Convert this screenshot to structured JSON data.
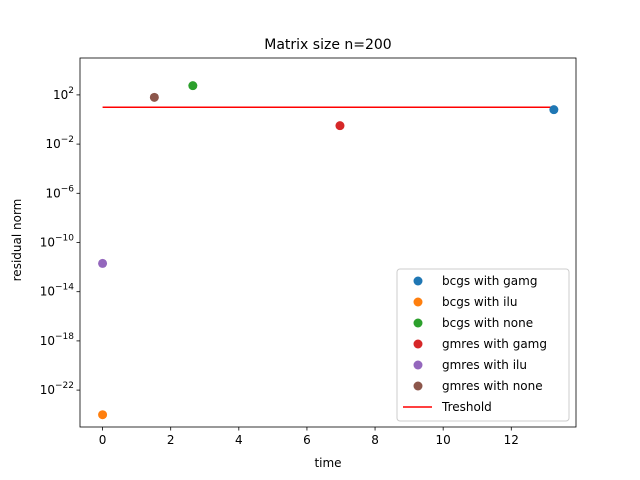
{
  "chart_data": {
    "type": "scatter",
    "title": "Matrix size n=200",
    "xlabel": "time",
    "ylabel": "residual norm",
    "xlim": [
      -0.663,
      13.9
    ],
    "ylim_log10": [
      -25.0,
      5.0
    ],
    "yscale": "log",
    "grid": false,
    "legend_position": "bottom-right",
    "x_ticks": [
      0,
      2,
      4,
      6,
      8,
      10,
      12
    ],
    "y_ticks_exponent": [
      2,
      -2,
      -6,
      -10,
      -14,
      -18,
      -22
    ],
    "series": [
      {
        "name": "bcgs with gamg",
        "color": "#1f77b4",
        "x": [
          13.25
        ],
        "y_log10": [
          0.8
        ]
      },
      {
        "name": "bcgs with ilu",
        "color": "#ff7f0e",
        "x": [
          0.0
        ],
        "y_log10": [
          -24.0
        ]
      },
      {
        "name": "bcgs with none",
        "color": "#2ca02c",
        "x": [
          2.65
        ],
        "y_log10": [
          2.75
        ]
      },
      {
        "name": "gmres with gamg",
        "color": "#d62728",
        "x": [
          6.97
        ],
        "y_log10": [
          -0.5
        ]
      },
      {
        "name": "gmres with ilu",
        "color": "#9467bd",
        "x": [
          0.0
        ],
        "y_log10": [
          -11.7
        ]
      },
      {
        "name": "gmres with none",
        "color": "#8c564b",
        "x": [
          1.52
        ],
        "y_log10": [
          1.8
        ]
      }
    ],
    "threshold": {
      "name": "Treshold",
      "color": "#ff0000",
      "x": [
        0.0,
        13.25
      ],
      "y_log10": [
        1.0,
        1.0
      ]
    }
  }
}
